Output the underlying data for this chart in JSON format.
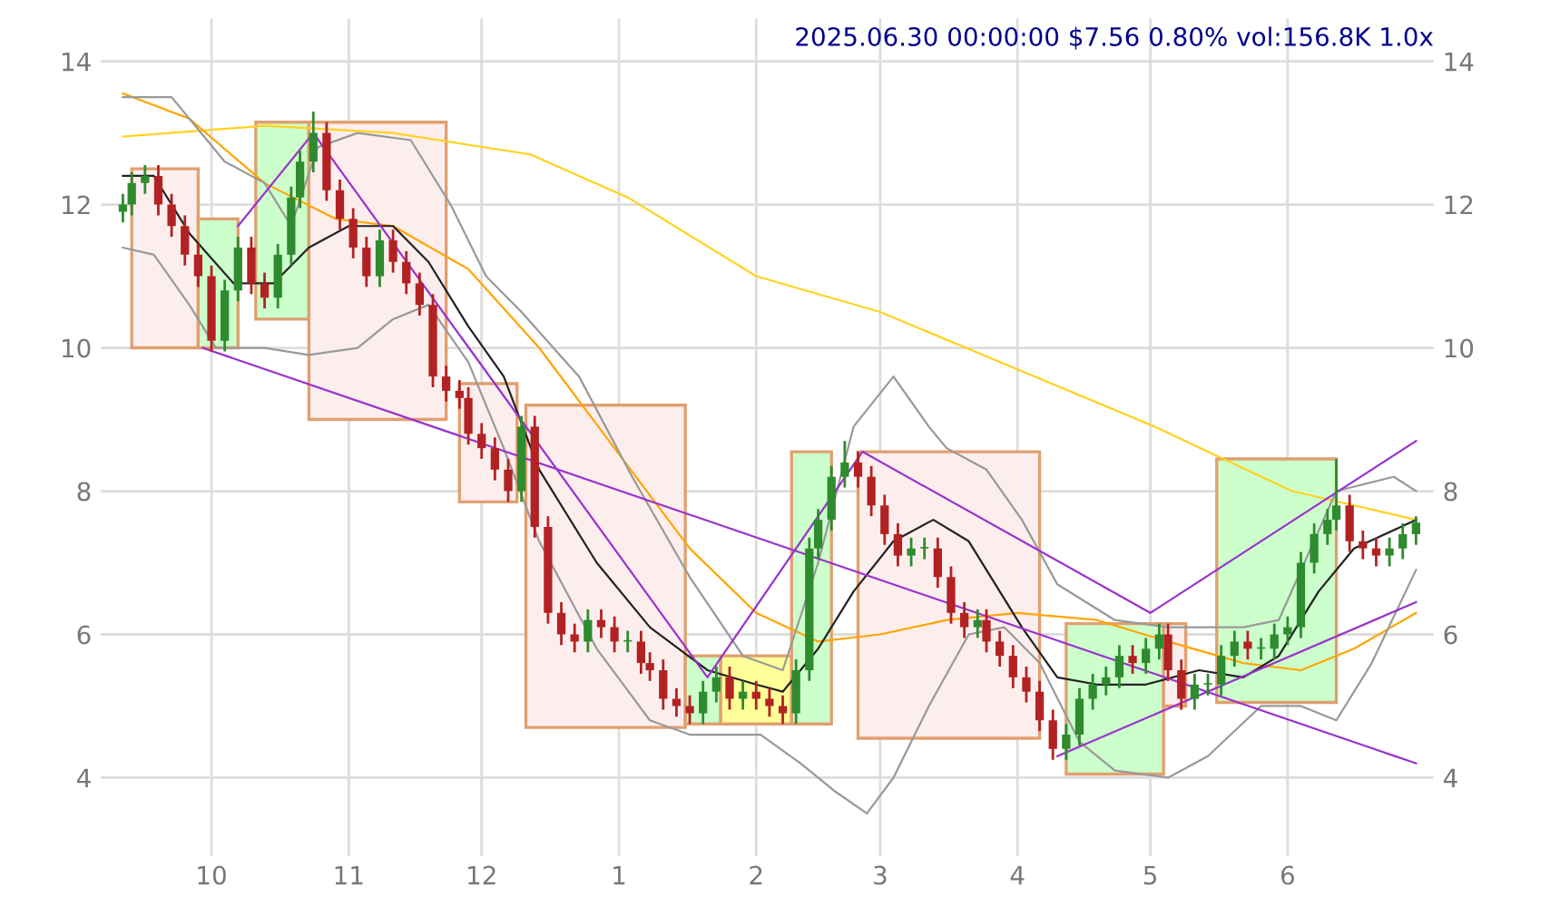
{
  "chart_data": {
    "type": "candlestick",
    "title": "2025.06.30 00:00:00 $7.56 0.80% vol:156.8K 1.0x",
    "x": [
      "2024-09-11",
      "2024-09-13",
      "2024-09-16",
      "2024-09-19",
      "2024-09-22",
      "2024-09-25",
      "2024-09-28",
      "2024-10-01",
      "2024-10-04",
      "2024-10-07",
      "2024-10-10",
      "2024-10-13",
      "2024-10-16",
      "2024-10-19",
      "2024-10-21",
      "2024-10-24",
      "2024-10-27",
      "2024-10-30",
      "2024-11-02",
      "2024-11-05",
      "2024-11-08",
      "2024-11-11",
      "2024-11-14",
      "2024-11-17",
      "2024-11-20",
      "2024-11-23",
      "2024-11-26",
      "2024-11-28",
      "2024-12-01",
      "2024-12-04",
      "2024-12-07",
      "2024-12-10",
      "2024-12-13",
      "2024-12-16",
      "2024-12-19",
      "2024-12-22",
      "2024-12-25",
      "2024-12-28",
      "2024-12-31",
      "2025-01-03",
      "2025-01-06",
      "2025-01-08",
      "2025-01-11",
      "2025-01-14",
      "2025-01-17",
      "2025-01-20",
      "2025-01-23",
      "2025-01-26",
      "2025-01-29",
      "2025-02-01",
      "2025-02-04",
      "2025-02-07",
      "2025-02-10",
      "2025-02-13",
      "2025-02-15",
      "2025-02-18",
      "2025-02-21",
      "2025-02-24",
      "2025-02-27",
      "2025-03-02",
      "2025-03-05",
      "2025-03-08",
      "2025-03-11",
      "2025-03-14",
      "2025-03-17",
      "2025-03-20",
      "2025-03-23",
      "2025-03-25",
      "2025-03-28",
      "2025-03-31",
      "2025-04-03",
      "2025-04-06",
      "2025-04-09",
      "2025-04-12",
      "2025-04-15",
      "2025-04-18",
      "2025-04-21",
      "2025-04-24",
      "2025-04-27",
      "2025-04-30",
      "2025-05-03",
      "2025-05-05",
      "2025-05-08",
      "2025-05-11",
      "2025-05-14",
      "2025-05-17",
      "2025-05-20",
      "2025-05-23",
      "2025-05-26",
      "2025-05-29",
      "2025-06-01",
      "2025-06-04",
      "2025-06-07",
      "2025-06-10",
      "2025-06-12",
      "2025-06-15",
      "2025-06-18",
      "2025-06-21",
      "2025-06-24",
      "2025-06-27",
      "2025-06-30"
    ],
    "ohlc": [
      [
        11.9,
        12.15,
        11.75,
        12.0
      ],
      [
        12.0,
        12.45,
        11.85,
        12.3
      ],
      [
        12.3,
        12.55,
        12.15,
        12.4
      ],
      [
        12.4,
        12.55,
        11.85,
        12.0
      ],
      [
        12.0,
        12.15,
        11.55,
        11.7
      ],
      [
        11.7,
        11.85,
        11.15,
        11.3
      ],
      [
        11.3,
        11.45,
        10.85,
        11.0
      ],
      [
        11.0,
        11.15,
        9.95,
        10.1
      ],
      [
        10.1,
        10.95,
        9.95,
        10.8
      ],
      [
        10.8,
        11.55,
        10.65,
        11.4
      ],
      [
        11.4,
        11.55,
        10.75,
        10.9
      ],
      [
        10.9,
        11.05,
        10.55,
        10.7
      ],
      [
        10.7,
        11.45,
        10.55,
        11.3
      ],
      [
        11.3,
        12.25,
        11.15,
        12.1
      ],
      [
        12.1,
        12.75,
        11.95,
        12.6
      ],
      [
        12.6,
        13.3,
        12.45,
        13.0
      ],
      [
        13.0,
        13.15,
        12.05,
        12.2
      ],
      [
        12.2,
        12.35,
        11.65,
        11.8
      ],
      [
        11.8,
        11.95,
        11.25,
        11.4
      ],
      [
        11.4,
        11.55,
        10.85,
        11.0
      ],
      [
        11.0,
        11.65,
        10.85,
        11.5
      ],
      [
        11.5,
        11.65,
        11.05,
        11.2
      ],
      [
        11.2,
        11.35,
        10.75,
        10.9
      ],
      [
        10.9,
        11.05,
        10.45,
        10.6
      ],
      [
        10.6,
        10.75,
        9.45,
        9.6
      ],
      [
        9.6,
        9.75,
        9.25,
        9.4
      ],
      [
        9.4,
        9.55,
        9.15,
        9.3
      ],
      [
        9.3,
        9.45,
        8.65,
        8.8
      ],
      [
        8.8,
        8.95,
        8.45,
        8.6
      ],
      [
        8.6,
        8.75,
        8.15,
        8.3
      ],
      [
        8.3,
        8.45,
        7.85,
        8.0
      ],
      [
        8.0,
        9.05,
        7.85,
        8.9
      ],
      [
        8.9,
        9.05,
        7.35,
        7.5
      ],
      [
        7.5,
        7.65,
        6.15,
        6.3
      ],
      [
        6.3,
        6.45,
        5.85,
        6.0
      ],
      [
        6.0,
        6.15,
        5.75,
        5.9
      ],
      [
        5.9,
        6.35,
        5.75,
        6.2
      ],
      [
        6.2,
        6.35,
        5.95,
        6.1
      ],
      [
        6.1,
        6.25,
        5.75,
        5.9
      ],
      [
        5.9,
        6.05,
        5.75,
        5.9
      ],
      [
        5.9,
        6.05,
        5.45,
        5.6
      ],
      [
        5.6,
        5.75,
        5.35,
        5.5
      ],
      [
        5.5,
        5.65,
        4.95,
        5.1
      ],
      [
        5.1,
        5.25,
        4.85,
        5.0
      ],
      [
        5.0,
        5.15,
        4.75,
        4.9
      ],
      [
        4.9,
        5.35,
        4.75,
        5.2
      ],
      [
        5.2,
        5.55,
        5.05,
        5.4
      ],
      [
        5.4,
        5.55,
        4.95,
        5.1
      ],
      [
        5.1,
        5.35,
        4.95,
        5.2
      ],
      [
        5.2,
        5.35,
        4.95,
        5.1
      ],
      [
        5.1,
        5.25,
        4.85,
        5.0
      ],
      [
        5.0,
        5.15,
        4.75,
        4.9
      ],
      [
        4.9,
        5.65,
        4.75,
        5.5
      ],
      [
        5.5,
        7.35,
        5.35,
        7.2
      ],
      [
        7.2,
        7.75,
        7.05,
        7.6
      ],
      [
        7.6,
        8.35,
        7.45,
        8.2
      ],
      [
        8.2,
        8.7,
        8.05,
        8.4
      ],
      [
        8.4,
        8.55,
        8.05,
        8.2
      ],
      [
        8.2,
        8.35,
        7.65,
        7.8
      ],
      [
        7.8,
        7.95,
        7.25,
        7.4
      ],
      [
        7.4,
        7.55,
        6.95,
        7.1
      ],
      [
        7.1,
        7.35,
        6.95,
        7.2
      ],
      [
        7.2,
        7.35,
        7.05,
        7.2
      ],
      [
        7.2,
        7.35,
        6.65,
        6.8
      ],
      [
        6.8,
        6.95,
        6.15,
        6.3
      ],
      [
        6.3,
        6.45,
        5.95,
        6.1
      ],
      [
        6.1,
        6.35,
        5.95,
        6.2
      ],
      [
        6.2,
        6.35,
        5.75,
        5.9
      ],
      [
        5.9,
        6.05,
        5.55,
        5.7
      ],
      [
        5.7,
        5.85,
        5.25,
        5.4
      ],
      [
        5.4,
        5.55,
        5.05,
        5.2
      ],
      [
        5.2,
        5.35,
        4.65,
        4.8
      ],
      [
        4.8,
        4.95,
        4.25,
        4.4
      ],
      [
        4.4,
        4.75,
        4.25,
        4.6
      ],
      [
        4.6,
        5.25,
        4.45,
        5.1
      ],
      [
        5.1,
        5.45,
        4.95,
        5.3
      ],
      [
        5.3,
        5.55,
        5.15,
        5.4
      ],
      [
        5.4,
        5.85,
        5.25,
        5.7
      ],
      [
        5.7,
        5.85,
        5.45,
        5.6
      ],
      [
        5.6,
        5.95,
        5.45,
        5.8
      ],
      [
        5.8,
        6.15,
        5.65,
        6.0
      ],
      [
        6.0,
        6.15,
        5.35,
        5.5
      ],
      [
        5.5,
        5.65,
        4.95,
        5.1
      ],
      [
        5.1,
        5.45,
        4.95,
        5.3
      ],
      [
        5.3,
        5.45,
        5.15,
        5.3
      ],
      [
        5.3,
        5.85,
        5.15,
        5.7
      ],
      [
        5.7,
        6.05,
        5.55,
        5.9
      ],
      [
        5.9,
        6.05,
        5.65,
        5.8
      ],
      [
        5.8,
        5.95,
        5.65,
        5.8
      ],
      [
        5.8,
        6.15,
        5.65,
        6.0
      ],
      [
        6.0,
        6.25,
        5.85,
        6.1
      ],
      [
        6.1,
        7.15,
        5.95,
        7.0
      ],
      [
        7.0,
        7.55,
        6.85,
        7.4
      ],
      [
        7.4,
        7.75,
        7.25,
        7.6
      ],
      [
        7.6,
        8.45,
        7.45,
        7.8
      ],
      [
        7.8,
        7.95,
        7.15,
        7.3
      ],
      [
        7.3,
        7.45,
        7.05,
        7.2
      ],
      [
        7.2,
        7.35,
        6.95,
        7.1
      ],
      [
        7.1,
        7.35,
        6.95,
        7.2
      ],
      [
        7.2,
        7.55,
        7.05,
        7.4
      ],
      [
        7.4,
        7.65,
        7.25,
        7.56
      ]
    ],
    "colors": [
      "#2e8b2e",
      "#2e8b2e",
      "#2e8b2e",
      "#b22222",
      "#b22222",
      "#b22222",
      "#b22222",
      "#b22222",
      "#2e8b2e",
      "#2e8b2e",
      "#b22222",
      "#b22222",
      "#2e8b2e",
      "#2e8b2e",
      "#2e8b2e",
      "#2e8b2e",
      "#b22222",
      "#b22222",
      "#b22222",
      "#b22222",
      "#2e8b2e",
      "#b22222",
      "#b22222",
      "#b22222",
      "#b22222",
      "#b22222",
      "#b22222",
      "#b22222",
      "#b22222",
      "#b22222",
      "#b22222",
      "#2e8b2e",
      "#b22222",
      "#b22222",
      "#b22222",
      "#b22222",
      "#2e8b2e",
      "#b22222",
      "#b22222",
      "#2e8b2e",
      "#b22222",
      "#b22222",
      "#b22222",
      "#b22222",
      "#b22222",
      "#2e8b2e",
      "#2e8b2e",
      "#b22222",
      "#2e8b2e",
      "#b22222",
      "#b22222",
      "#b22222",
      "#2e8b2e",
      "#2e8b2e",
      "#2e8b2e",
      "#2e8b2e",
      "#2e8b2e",
      "#b22222",
      "#b22222",
      "#b22222",
      "#b22222",
      "#2e8b2e",
      "#2e8b2e",
      "#b22222",
      "#b22222",
      "#b22222",
      "#2e8b2e",
      "#b22222",
      "#b22222",
      "#b22222",
      "#b22222",
      "#b22222",
      "#b22222",
      "#2e8b2e",
      "#2e8b2e",
      "#2e8b2e",
      "#2e8b2e",
      "#2e8b2e",
      "#b22222",
      "#2e8b2e",
      "#2e8b2e",
      "#b22222",
      "#b22222",
      "#2e8b2e",
      "#2e8b2e",
      "#2e8b2e",
      "#2e8b2e",
      "#b22222",
      "#2e8b2e",
      "#2e8b2e",
      "#2e8b2e",
      "#2e8b2e",
      "#2e8b2e",
      "#2e8b2e",
      "#2e8b2e",
      "#b22222",
      "#b22222",
      "#b22222",
      "#2e8b2e",
      "#2e8b2e",
      "#2e8b2e"
    ],
    "series": [
      {
        "type": "area",
        "color": "#fdeeee",
        "x": [
          "2024-09-13",
          "2024-09-13",
          "2024-09-28",
          "2024-09-28"
        ],
        "values": [
          10.0,
          12.5,
          12.5,
          10.0
        ]
      },
      {
        "type": "area",
        "color": "#ccffcc",
        "x": [
          "2024-09-28",
          "2024-09-28",
          "2024-10-07",
          "2024-10-07"
        ],
        "values": [
          10.0,
          11.8,
          11.8,
          10.0
        ]
      },
      {
        "type": "area",
        "color": "#ccffcc",
        "x": [
          "2024-10-11",
          "2024-10-11",
          "2024-10-23",
          "2024-10-23"
        ],
        "values": [
          10.4,
          13.15,
          13.15,
          10.4
        ]
      },
      {
        "type": "area",
        "color": "#fdeeee",
        "x": [
          "2024-10-23",
          "2024-10-23",
          "2024-11-23",
          "2024-11-23"
        ],
        "values": [
          9.0,
          13.15,
          13.15,
          9.0
        ]
      },
      {
        "type": "area",
        "color": "#fdeeee",
        "x": [
          "2024-11-26",
          "2024-11-26",
          "2024-12-09",
          "2024-12-09"
        ],
        "values": [
          7.85,
          9.5,
          9.5,
          7.85
        ]
      },
      {
        "type": "area",
        "color": "#fdeeee",
        "x": [
          "2024-12-11",
          "2024-12-11",
          "2025-01-16",
          "2025-01-16"
        ],
        "values": [
          4.7,
          9.2,
          9.2,
          4.7
        ]
      },
      {
        "type": "area",
        "color": "#ccffcc",
        "x": [
          "2025-01-16",
          "2025-01-16",
          "2025-01-24",
          "2025-01-24"
        ],
        "values": [
          4.75,
          5.7,
          5.7,
          4.75
        ]
      },
      {
        "type": "area",
        "color": "#ffff99",
        "x": [
          "2025-01-24",
          "2025-01-24",
          "2025-02-09",
          "2025-02-09"
        ],
        "values": [
          4.75,
          5.7,
          5.7,
          4.75
        ]
      },
      {
        "type": "area",
        "color": "#ccffcc",
        "x": [
          "2025-02-09",
          "2025-02-09",
          "2025-02-18",
          "2025-02-18"
        ],
        "values": [
          4.75,
          8.55,
          8.55,
          4.75
        ]
      },
      {
        "type": "area",
        "color": "#fdeeee",
        "x": [
          "2025-02-24",
          "2025-02-24",
          "2025-04-06",
          "2025-04-06"
        ],
        "values": [
          4.55,
          8.55,
          8.55,
          4.55
        ]
      },
      {
        "type": "area",
        "color": "#ccffcc",
        "x": [
          "2025-04-12",
          "2025-04-12",
          "2025-05-04",
          "2025-05-04"
        ],
        "values": [
          4.05,
          6.15,
          6.15,
          4.05
        ]
      },
      {
        "type": "area",
        "color": "#fdeeee",
        "x": [
          "2025-05-04",
          "2025-05-04",
          "2025-05-09",
          "2025-05-09"
        ],
        "values": [
          5.0,
          6.15,
          6.15,
          5.0
        ]
      },
      {
        "type": "area",
        "color": "#ccffcc",
        "x": [
          "2025-05-16",
          "2025-05-16",
          "2025-06-12",
          "2025-06-12"
        ],
        "values": [
          5.05,
          8.45,
          8.45,
          5.05
        ]
      },
      {
        "type": "line",
        "color": "#ffd21f",
        "x": [
          "2024-09-11",
          "2024-10-13",
          "2024-11-11",
          "2024-12-12",
          "2025-01-03",
          "2025-02-01",
          "2025-03-01",
          "2025-04-01",
          "2025-05-02",
          "2025-06-02",
          "2025-06-30"
        ],
        "values": [
          12.95,
          13.1,
          13.0,
          12.7,
          12.1,
          11.0,
          10.5,
          9.7,
          8.9,
          8.0,
          7.6
        ]
      },
      {
        "type": "line",
        "color": "#ffa500",
        "x": [
          "2024-09-11",
          "2024-09-26",
          "2024-10-13",
          "2024-10-29",
          "2024-11-11",
          "2024-11-28",
          "2024-12-14",
          "2024-12-31",
          "2025-01-17",
          "2025-02-01",
          "2025-02-15",
          "2025-03-01",
          "2025-03-16",
          "2025-04-01",
          "2025-04-19",
          "2025-05-05",
          "2025-05-22",
          "2025-06-04",
          "2025-06-16",
          "2025-06-30"
        ],
        "values": [
          13.55,
          13.2,
          12.3,
          11.8,
          11.7,
          11.1,
          10.0,
          8.6,
          7.2,
          6.3,
          5.9,
          6.0,
          6.2,
          6.3,
          6.2,
          5.9,
          5.6,
          5.5,
          5.8,
          6.3
        ]
      },
      {
        "type": "line",
        "color": "#999999",
        "x": [
          "2024-09-11",
          "2024-09-22",
          "2024-10-04",
          "2024-10-13",
          "2024-10-19",
          "2024-10-25",
          "2024-11-03",
          "2024-11-15",
          "2024-11-24",
          "2024-12-02",
          "2024-12-10",
          "2024-12-23",
          "2025-01-04",
          "2025-01-17",
          "2025-01-29",
          "2025-02-07",
          "2025-02-15",
          "2025-02-23",
          "2025-03-04",
          "2025-03-12",
          "2025-03-16",
          "2025-03-25",
          "2025-04-02",
          "2025-04-10",
          "2025-04-23",
          "2025-05-05",
          "2025-05-22",
          "2025-05-30",
          "2025-06-12",
          "2025-06-25",
          "2025-06-30"
        ],
        "values": [
          13.5,
          13.5,
          12.6,
          12.3,
          11.7,
          12.8,
          13.0,
          12.9,
          12.0,
          11.0,
          10.5,
          9.6,
          8.2,
          6.8,
          5.7,
          5.5,
          7.0,
          8.9,
          9.6,
          8.9,
          8.6,
          8.3,
          7.6,
          6.7,
          6.2,
          6.1,
          6.1,
          6.2,
          8.0,
          8.2,
          8.0
        ]
      },
      {
        "type": "line",
        "color": "#999999",
        "x": [
          "2024-09-11",
          "2024-09-18",
          "2024-09-26",
          "2024-10-02",
          "2024-10-13",
          "2024-10-23",
          "2024-11-03",
          "2024-11-11",
          "2024-11-19",
          "2024-11-28",
          "2024-12-06",
          "2024-12-14",
          "2024-12-27",
          "2025-01-08",
          "2025-01-17",
          "2025-02-02",
          "2025-02-11",
          "2025-02-19",
          "2025-02-26",
          "2025-03-04",
          "2025-03-12",
          "2025-03-21",
          "2025-03-29",
          "2025-04-06",
          "2025-04-15",
          "2025-04-23",
          "2025-05-05",
          "2025-05-14",
          "2025-05-26",
          "2025-06-04",
          "2025-06-12",
          "2025-06-20",
          "2025-06-30"
        ],
        "values": [
          11.4,
          11.3,
          10.6,
          10.0,
          10.0,
          9.9,
          10.0,
          10.4,
          10.6,
          9.8,
          8.6,
          7.3,
          5.8,
          4.8,
          4.6,
          4.6,
          4.2,
          3.8,
          3.5,
          4.0,
          5.0,
          6.0,
          6.1,
          5.6,
          4.5,
          4.1,
          4.0,
          4.3,
          5.0,
          5.0,
          4.8,
          5.6,
          6.9
        ]
      },
      {
        "type": "line",
        "color": "#222222",
        "x": [
          "2024-09-11",
          "2024-09-18",
          "2024-09-26",
          "2024-10-06",
          "2024-10-15",
          "2024-10-23",
          "2024-11-01",
          "2024-11-11",
          "2024-11-19",
          "2024-11-28",
          "2024-12-06",
          "2024-12-14",
          "2024-12-27",
          "2025-01-08",
          "2025-01-21",
          "2025-02-01",
          "2025-02-07",
          "2025-02-15",
          "2025-02-23",
          "2025-03-04",
          "2025-03-13",
          "2025-03-21",
          "2025-04-02",
          "2025-04-10",
          "2025-04-19",
          "2025-04-30",
          "2025-05-12",
          "2025-05-22",
          "2025-05-30",
          "2025-06-08",
          "2025-06-16",
          "2025-06-30"
        ],
        "values": [
          12.4,
          12.4,
          11.6,
          10.9,
          10.9,
          11.4,
          11.7,
          11.7,
          11.2,
          10.3,
          9.6,
          8.3,
          7.0,
          6.1,
          5.5,
          5.3,
          5.2,
          5.8,
          6.6,
          7.3,
          7.6,
          7.3,
          6.1,
          5.4,
          5.3,
          5.3,
          5.5,
          5.4,
          5.7,
          6.6,
          7.2,
          7.6
        ]
      },
      {
        "type": "line",
        "color": "#9932cc",
        "x": [
          "2024-10-07",
          "2024-10-24",
          "2025-01-21",
          "2025-02-25",
          "2025-05-01",
          "2025-06-30"
        ],
        "values": [
          11.7,
          13.0,
          5.4,
          8.55,
          6.3,
          8.7
        ]
      },
      {
        "type": "line",
        "color": "#9932cc",
        "x": [
          "2024-09-29",
          "2025-06-30"
        ],
        "values": [
          10.0,
          4.2
        ]
      },
      {
        "type": "line",
        "color": "#9932cc",
        "x": [
          "2025-04-10",
          "2025-06-30"
        ],
        "values": [
          4.3,
          6.45
        ]
      }
    ],
    "xlim": [
      "2024-09-06",
      "2025-07-04"
    ],
    "xticks": [
      {
        "value": "2024-10-01",
        "label": "10"
      },
      {
        "value": "2024-11-01",
        "label": "11"
      },
      {
        "value": "2024-12-01",
        "label": "12"
      },
      {
        "value": "2025-01-01",
        "label": "1"
      },
      {
        "value": "2025-02-01",
        "label": "2"
      },
      {
        "value": "2025-03-01",
        "label": "3"
      },
      {
        "value": "2025-04-01",
        "label": "4"
      },
      {
        "value": "2025-05-01",
        "label": "5"
      },
      {
        "value": "2025-06-01",
        "label": "6"
      }
    ],
    "ylim": [
      2.9,
      14.6
    ],
    "yticks": [
      4,
      6,
      8,
      10,
      12,
      14
    ],
    "y2lim": [
      2.9,
      14.6
    ],
    "y2ticks": [
      4,
      6,
      8,
      10,
      12,
      14
    ],
    "grid": true
  }
}
